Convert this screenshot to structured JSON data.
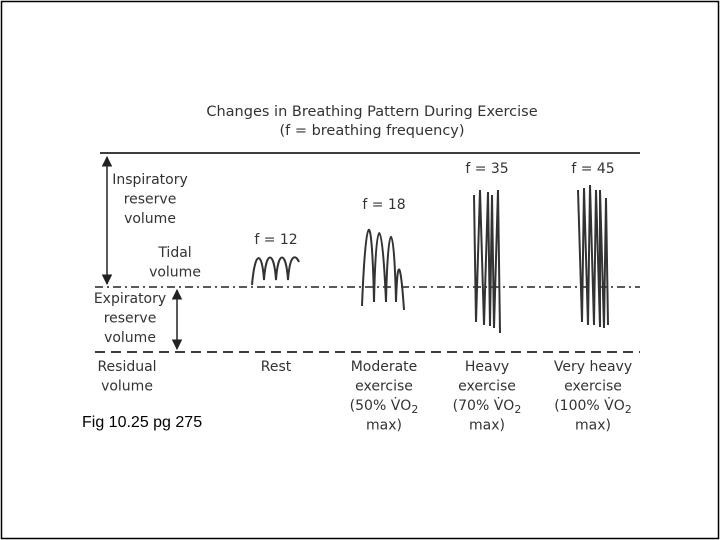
{
  "figure": {
    "title": [
      "Changes in Breathing Pattern During Exercise",
      "(f = breathing frequency)"
    ],
    "volumes": {
      "inspiratory": [
        "Inspiratory",
        "reserve",
        "volume"
      ],
      "tidal": [
        "Tidal",
        "volume"
      ],
      "expiratory": [
        "Expiratory",
        "reserve",
        "volume"
      ],
      "residual": [
        "Residual",
        "volume"
      ]
    },
    "conditions": [
      {
        "frequency": "f = 12",
        "label": [
          [
            "Rest"
          ]
        ]
      },
      {
        "frequency": "f = 18",
        "label": [
          [
            "Moderate"
          ],
          [
            "exercise"
          ],
          [
            "(50% V̇O",
            "2"
          ],
          [
            "max)"
          ]
        ]
      },
      {
        "frequency": "f = 35",
        "label": [
          [
            "Heavy"
          ],
          [
            "exercise"
          ],
          [
            "(70% V̇O",
            "2"
          ],
          [
            "max)"
          ]
        ]
      },
      {
        "frequency": "f = 45",
        "label": [
          [
            "Very heavy"
          ],
          [
            "exercise"
          ],
          [
            "(100% V̇O",
            "2"
          ],
          [
            "max)"
          ]
        ]
      }
    ],
    "caption": "Fig 10.25 pg 275"
  }
}
